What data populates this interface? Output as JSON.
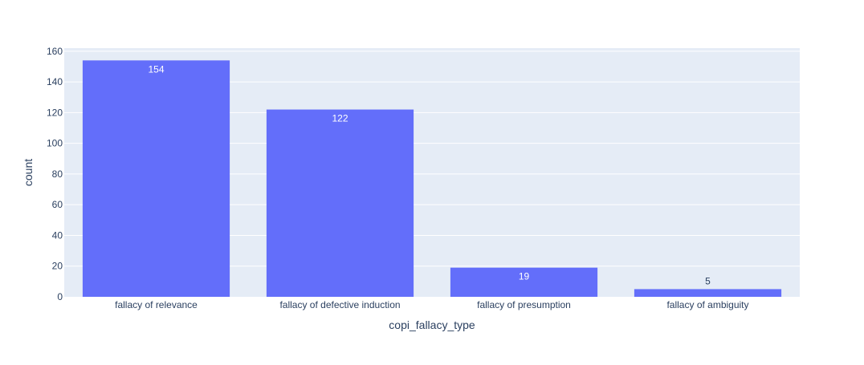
{
  "chart_data": {
    "type": "bar",
    "categories": [
      "fallacy of relevance",
      "fallacy of defective induction",
      "fallacy of presumption",
      "fallacy of ambiguity"
    ],
    "values": [
      154,
      122,
      19,
      5
    ],
    "data_labels": [
      "154",
      "122",
      "19",
      "5"
    ],
    "xlabel": "copi_fallacy_type",
    "ylabel": "count",
    "ylim": [
      0,
      162
    ],
    "yticks": [
      0,
      20,
      40,
      60,
      80,
      100,
      120,
      140,
      160
    ],
    "grid": true,
    "bar_color": "#636efa",
    "plot_bg": "#e5ecf6",
    "label_inside_color": "#ffffff",
    "label_outside_color": "#2a3f5f",
    "axis_text_color": "#2a3f5f"
  }
}
